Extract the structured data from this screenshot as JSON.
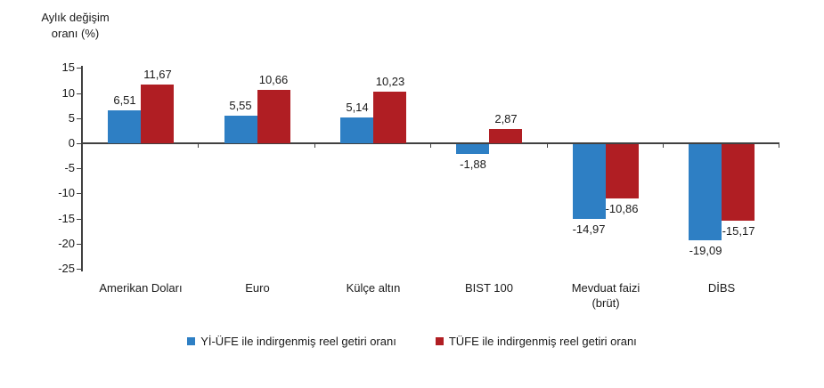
{
  "chart_data": {
    "type": "bar",
    "axis_title": "Aylık değişim\noranı (%)",
    "categories": [
      "Amerikan Doları",
      "Euro",
      "Külçe altın",
      "BIST 100",
      "Mevduat faizi\n(brüt)",
      "DİBS"
    ],
    "series": [
      {
        "name": "Yİ-ÜFE ile indirgenmiş reel getiri oranı",
        "color": "#2E7FC4",
        "values": [
          6.51,
          5.55,
          5.14,
          -1.88,
          -14.97,
          -19.09
        ],
        "labels": [
          "6,51",
          "5,55",
          "5,14",
          "-1,88",
          "-14,97",
          "-19,09"
        ]
      },
      {
        "name": "TÜFE ile indirgenmiş reel getiri oranı",
        "color": "#B01E23",
        "values": [
          11.67,
          10.66,
          10.23,
          2.87,
          -10.86,
          -15.17
        ],
        "labels": [
          "11,67",
          "10,66",
          "10,23",
          "2,87",
          "-10,86",
          "-15,17"
        ]
      }
    ],
    "yticks": [
      15,
      10,
      5,
      0,
      -5,
      -10,
      -15,
      -20,
      -25
    ],
    "ylim": [
      -25,
      15
    ],
    "grid": false,
    "legend_position": "bottom",
    "axis_color": "#404040",
    "text_color": "#1a1a1a"
  }
}
